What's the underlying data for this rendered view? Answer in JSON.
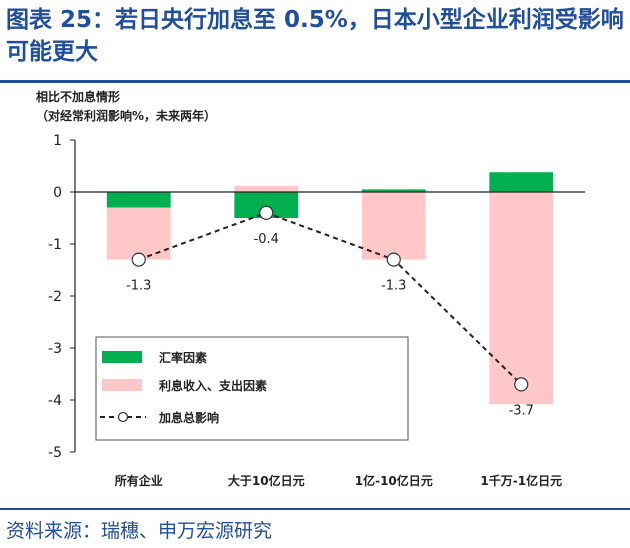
{
  "title": "图表 25：若日央行加息至 0.5%，日本小型企业利润受影响可能更大",
  "source": "资料来源：瑞穗、申万宏源研究",
  "chart_data": {
    "type": "bar",
    "ylabel_line1": "相比不加息情形",
    "ylabel_line2": "（对经常利润影响%，未来两年）",
    "categories": [
      "所有企业",
      "大于10亿日元",
      "1亿-10亿日元",
      "1千万-1亿日元"
    ],
    "ylim": [
      -5,
      1
    ],
    "yticks": [
      1,
      0,
      -1,
      -2,
      -3,
      -4,
      -5
    ],
    "grid": false,
    "legend_position": "lower-left",
    "series": [
      {
        "name": "汇率因素",
        "kind": "bar",
        "color": "#00b050",
        "values": [
          -0.3,
          -0.5,
          0.05,
          0.38
        ]
      },
      {
        "name": "利息收入、支出因素",
        "kind": "bar",
        "color": "#ffc7c7",
        "values": [
          -1.0,
          0.12,
          -1.3,
          -4.08
        ]
      },
      {
        "name": "加息总影响",
        "kind": "line",
        "color": "#222222",
        "values": [
          -1.3,
          -0.4,
          -1.3,
          -3.7
        ]
      }
    ],
    "data_labels": [
      "-1.3",
      "-0.4",
      "-1.3",
      "-3.7"
    ]
  }
}
